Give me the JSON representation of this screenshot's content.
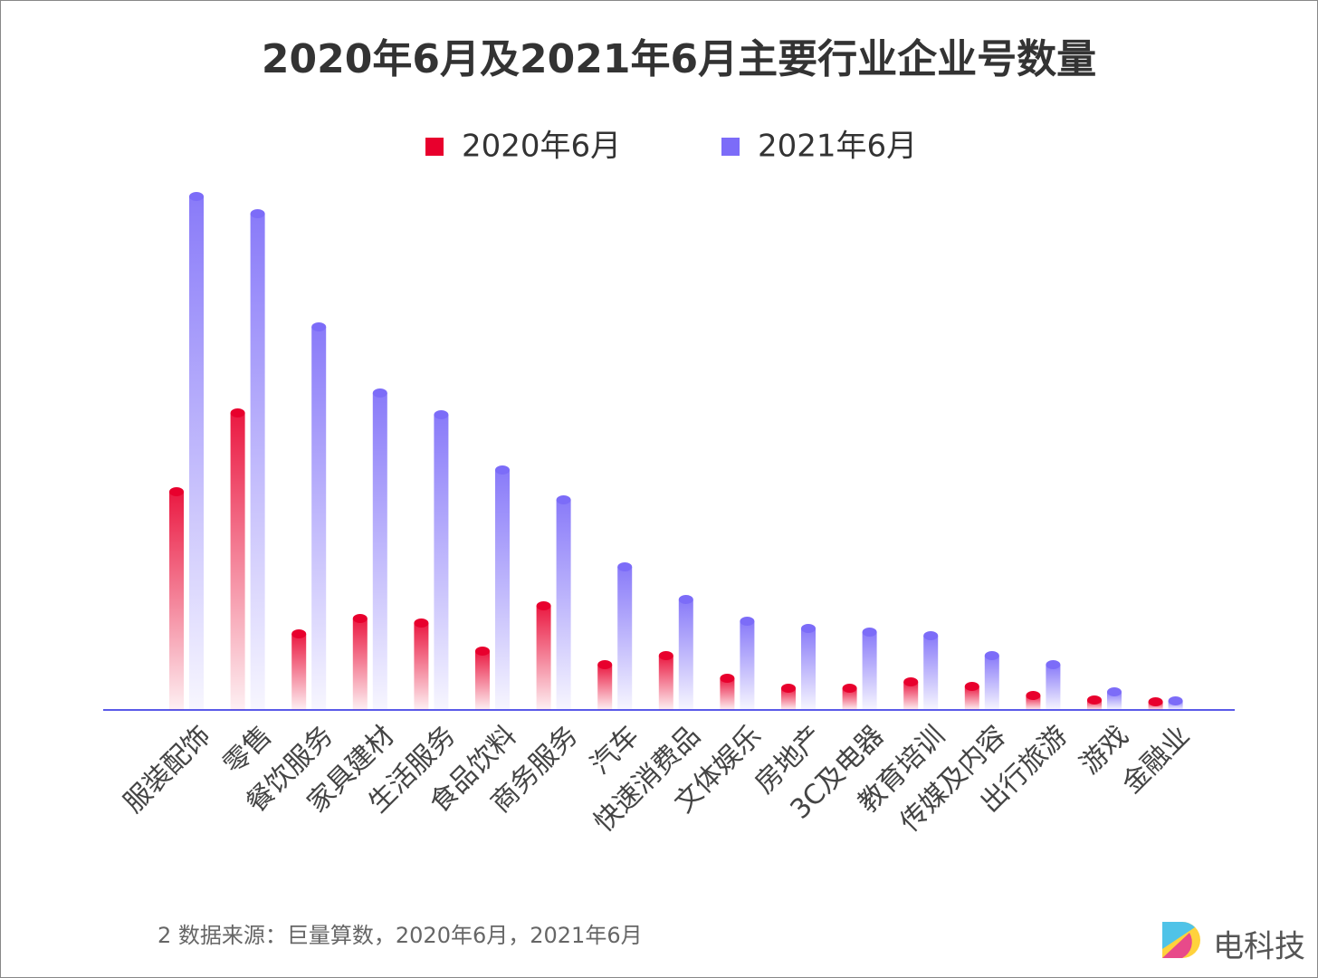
{
  "chart_data": {
    "type": "bar",
    "title": "2020年6月及2021年6月主要行业企业号数量",
    "categories": [
      "服装配饰",
      "零售",
      "餐饮服务",
      "家具建材",
      "生活服务",
      "食品饮料",
      "商务服务",
      "汽车",
      "快速消费品",
      "文体娱乐",
      "房地产",
      "3C及电器",
      "教育培训",
      "传媒及内容",
      "出行旅游",
      "游戏",
      "金融业"
    ],
    "series": [
      {
        "name": "2020年6月",
        "color": "#e8002d",
        "values": [
          241,
          328,
          84,
          101,
          96,
          65,
          115,
          50,
          60,
          35,
          24,
          24,
          31,
          26,
          16,
          11,
          9
        ]
      },
      {
        "name": "2021年6月",
        "color": "#7c6cf8",
        "values": [
          567,
          548,
          423,
          350,
          326,
          265,
          232,
          158,
          122,
          98,
          90,
          86,
          82,
          60,
          50,
          20,
          10
        ]
      }
    ],
    "legend": "top",
    "source": "2 数据来源：巨量算数，2020年6月，2021年6月"
  },
  "logo": "电科技"
}
